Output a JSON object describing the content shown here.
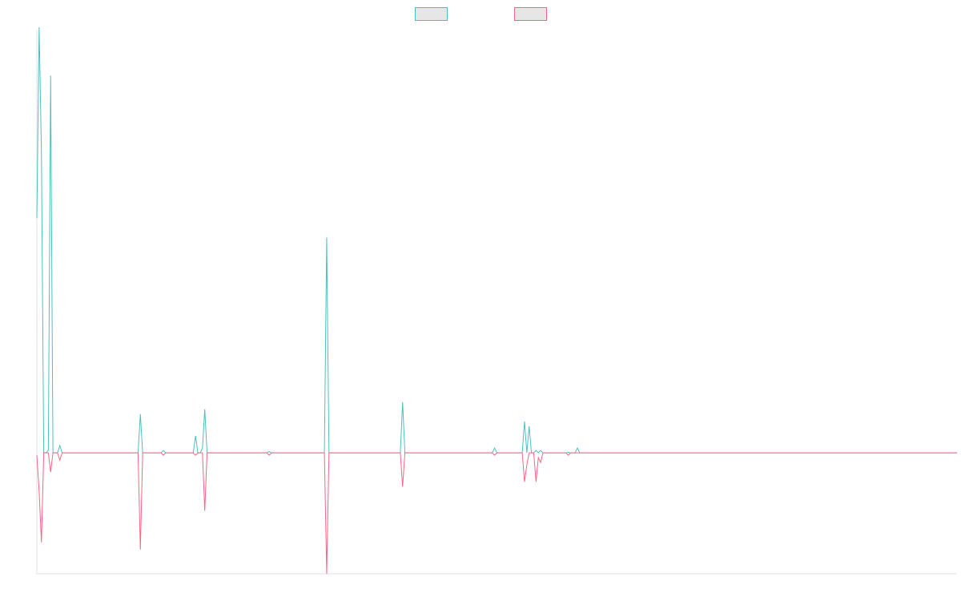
{
  "chart_data": {
    "type": "line",
    "title": "",
    "xlabel": "",
    "ylabel": "",
    "x_range": [
      0,
      400
    ],
    "y_range": [
      -50,
      175
    ],
    "grid": false,
    "legend": {
      "position": "top",
      "entries": [
        {
          "name": "",
          "color": "#4bc0c0"
        },
        {
          "name": "",
          "color": "#ff6384"
        }
      ]
    },
    "series": [
      {
        "name": "",
        "color": "#4bc0c0",
        "points": [
          [
            0,
            97
          ],
          [
            1,
            176
          ],
          [
            2,
            124
          ],
          [
            3,
            0
          ],
          [
            4,
            0
          ],
          [
            5,
            1
          ],
          [
            6,
            156
          ],
          [
            7,
            0
          ],
          [
            8,
            0
          ],
          [
            9,
            0
          ],
          [
            10,
            3
          ],
          [
            11,
            0
          ],
          [
            44,
            0
          ],
          [
            45,
            16
          ],
          [
            46,
            0
          ],
          [
            54,
            0
          ],
          [
            55,
            1
          ],
          [
            56,
            0
          ],
          [
            68,
            0
          ],
          [
            69,
            7
          ],
          [
            70,
            0
          ],
          [
            71,
            0
          ],
          [
            72,
            2
          ],
          [
            73,
            18
          ],
          [
            74,
            0
          ],
          [
            100,
            0
          ],
          [
            101,
            0.5
          ],
          [
            102,
            0
          ],
          [
            125,
            0
          ],
          [
            126,
            89
          ],
          [
            127,
            0
          ],
          [
            158,
            0
          ],
          [
            159,
            21
          ],
          [
            160,
            0
          ],
          [
            198,
            0
          ],
          [
            199,
            2
          ],
          [
            200,
            0
          ],
          [
            211,
            0
          ],
          [
            212,
            13
          ],
          [
            213,
            0
          ],
          [
            214,
            11
          ],
          [
            215,
            0
          ],
          [
            216,
            0
          ],
          [
            217,
            1
          ],
          [
            218,
            0
          ],
          [
            219,
            1
          ],
          [
            220,
            0
          ],
          [
            230,
            0
          ],
          [
            231,
            0.2
          ],
          [
            232,
            0
          ],
          [
            234,
            0
          ],
          [
            235,
            2
          ],
          [
            236,
            0
          ],
          [
            400,
            0
          ]
        ]
      },
      {
        "name": "",
        "color": "#ff6384",
        "points": [
          [
            0,
            -1
          ],
          [
            1,
            -16
          ],
          [
            2,
            -37
          ],
          [
            3,
            0
          ],
          [
            4,
            0
          ],
          [
            5,
            0
          ],
          [
            6,
            -8
          ],
          [
            7,
            0
          ],
          [
            8,
            0
          ],
          [
            9,
            0
          ],
          [
            10,
            -3
          ],
          [
            11,
            0
          ],
          [
            44,
            0
          ],
          [
            45,
            -40
          ],
          [
            46,
            0
          ],
          [
            54,
            0
          ],
          [
            55,
            -1
          ],
          [
            56,
            0
          ],
          [
            68,
            0
          ],
          [
            69,
            -1
          ],
          [
            70,
            0
          ],
          [
            71,
            0
          ],
          [
            72,
            0
          ],
          [
            73,
            -24
          ],
          [
            74,
            0
          ],
          [
            100,
            0
          ],
          [
            101,
            -1
          ],
          [
            102,
            0
          ],
          [
            125,
            0
          ],
          [
            126,
            -50
          ],
          [
            127,
            0
          ],
          [
            158,
            0
          ],
          [
            159,
            -14
          ],
          [
            160,
            0
          ],
          [
            198,
            0
          ],
          [
            199,
            -1
          ],
          [
            200,
            0
          ],
          [
            211,
            0
          ],
          [
            212,
            -12
          ],
          [
            213,
            -5
          ],
          [
            214,
            0
          ],
          [
            215,
            0
          ],
          [
            216,
            0
          ],
          [
            217,
            -12
          ],
          [
            218,
            -2
          ],
          [
            219,
            -4
          ],
          [
            220,
            0
          ],
          [
            230,
            0
          ],
          [
            231,
            -1
          ],
          [
            232,
            0
          ],
          [
            234,
            0
          ],
          [
            235,
            0
          ],
          [
            236,
            0
          ],
          [
            400,
            0
          ]
        ]
      }
    ]
  }
}
